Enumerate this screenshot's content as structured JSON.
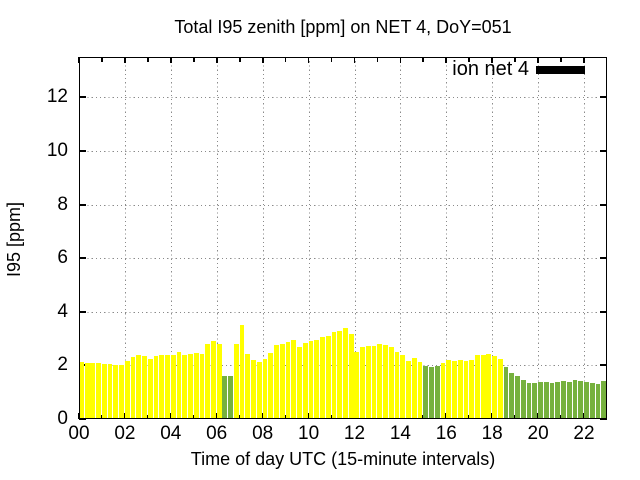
{
  "chart_data": {
    "type": "bar",
    "title": "Total I95 zenith [ppm] on NET 4, DoY=051",
    "xlabel": "Time of day UTC (15-minute intervals)",
    "ylabel": "I95 [ppm]",
    "legend": [
      {
        "label": "ion net 4",
        "swatch_color": "#000000"
      }
    ],
    "legend_position": "top-right-inside",
    "grid": true,
    "xlim_hours": [
      0,
      23
    ],
    "ylim": [
      0,
      13.5
    ],
    "x_tick_hours": [
      0,
      2,
      4,
      6,
      8,
      10,
      12,
      14,
      16,
      18,
      20,
      22
    ],
    "x_tick_labels": [
      "00",
      "02",
      "04",
      "06",
      "08",
      "10",
      "12",
      "14",
      "16",
      "18",
      "20",
      "22"
    ],
    "x_minor_tick_hours": [
      1,
      3,
      5,
      7,
      9,
      11,
      13,
      15,
      17,
      19,
      21
    ],
    "y_major_ticks": [
      0,
      2,
      4,
      6,
      8,
      10,
      12
    ],
    "bar_interval_minutes": 15,
    "colors": {
      "yellow": "#ffff00",
      "green": "#76b13e"
    },
    "bars": [
      {
        "t": "00:00",
        "v": 2.13,
        "c": "yellow"
      },
      {
        "t": "00:15",
        "v": 2.1,
        "c": "yellow"
      },
      {
        "t": "00:30",
        "v": 2.07,
        "c": "yellow"
      },
      {
        "t": "00:45",
        "v": 2.08,
        "c": "yellow"
      },
      {
        "t": "01:00",
        "v": 2.04,
        "c": "yellow"
      },
      {
        "t": "01:15",
        "v": 2.04,
        "c": "yellow"
      },
      {
        "t": "01:30",
        "v": 2.0,
        "c": "yellow"
      },
      {
        "t": "01:45",
        "v": 2.0,
        "c": "yellow"
      },
      {
        "t": "02:00",
        "v": 2.16,
        "c": "yellow"
      },
      {
        "t": "02:15",
        "v": 2.31,
        "c": "yellow"
      },
      {
        "t": "02:30",
        "v": 2.38,
        "c": "yellow"
      },
      {
        "t": "02:45",
        "v": 2.35,
        "c": "yellow"
      },
      {
        "t": "03:00",
        "v": 2.22,
        "c": "yellow"
      },
      {
        "t": "03:15",
        "v": 2.35,
        "c": "yellow"
      },
      {
        "t": "03:30",
        "v": 2.37,
        "c": "yellow"
      },
      {
        "t": "03:45",
        "v": 2.37,
        "c": "yellow"
      },
      {
        "t": "04:00",
        "v": 2.37,
        "c": "yellow"
      },
      {
        "t": "04:15",
        "v": 2.51,
        "c": "yellow"
      },
      {
        "t": "04:30",
        "v": 2.38,
        "c": "yellow"
      },
      {
        "t": "04:45",
        "v": 2.41,
        "c": "yellow"
      },
      {
        "t": "05:00",
        "v": 2.47,
        "c": "yellow"
      },
      {
        "t": "05:15",
        "v": 2.43,
        "c": "yellow"
      },
      {
        "t": "05:30",
        "v": 2.8,
        "c": "yellow"
      },
      {
        "t": "05:45",
        "v": 2.9,
        "c": "yellow"
      },
      {
        "t": "06:00",
        "v": 2.8,
        "c": "yellow"
      },
      {
        "t": "06:15",
        "v": 1.6,
        "c": "green"
      },
      {
        "t": "06:30",
        "v": 1.6,
        "c": "green"
      },
      {
        "t": "06:45",
        "v": 2.78,
        "c": "yellow"
      },
      {
        "t": "07:00",
        "v": 3.5,
        "c": "yellow"
      },
      {
        "t": "07:15",
        "v": 2.41,
        "c": "yellow"
      },
      {
        "t": "07:30",
        "v": 2.19,
        "c": "yellow"
      },
      {
        "t": "07:45",
        "v": 2.14,
        "c": "yellow"
      },
      {
        "t": "08:00",
        "v": 2.23,
        "c": "yellow"
      },
      {
        "t": "08:15",
        "v": 2.47,
        "c": "yellow"
      },
      {
        "t": "08:30",
        "v": 2.75,
        "c": "yellow"
      },
      {
        "t": "08:45",
        "v": 2.78,
        "c": "yellow"
      },
      {
        "t": "09:00",
        "v": 2.88,
        "c": "yellow"
      },
      {
        "t": "09:15",
        "v": 2.93,
        "c": "yellow"
      },
      {
        "t": "09:30",
        "v": 2.68,
        "c": "yellow"
      },
      {
        "t": "09:45",
        "v": 2.84,
        "c": "yellow"
      },
      {
        "t": "10:00",
        "v": 2.9,
        "c": "yellow"
      },
      {
        "t": "10:15",
        "v": 2.96,
        "c": "yellow"
      },
      {
        "t": "10:30",
        "v": 3.05,
        "c": "yellow"
      },
      {
        "t": "10:45",
        "v": 3.11,
        "c": "yellow"
      },
      {
        "t": "11:00",
        "v": 3.23,
        "c": "yellow"
      },
      {
        "t": "11:15",
        "v": 3.29,
        "c": "yellow"
      },
      {
        "t": "11:30",
        "v": 3.39,
        "c": "yellow"
      },
      {
        "t": "11:45",
        "v": 3.17,
        "c": "yellow"
      },
      {
        "t": "12:00",
        "v": 2.51,
        "c": "yellow"
      },
      {
        "t": "12:15",
        "v": 2.69,
        "c": "yellow"
      },
      {
        "t": "12:30",
        "v": 2.72,
        "c": "yellow"
      },
      {
        "t": "12:45",
        "v": 2.72,
        "c": "yellow"
      },
      {
        "t": "13:00",
        "v": 2.81,
        "c": "yellow"
      },
      {
        "t": "13:15",
        "v": 2.75,
        "c": "yellow"
      },
      {
        "t": "13:30",
        "v": 2.67,
        "c": "yellow"
      },
      {
        "t": "13:45",
        "v": 2.49,
        "c": "yellow"
      },
      {
        "t": "14:00",
        "v": 2.38,
        "c": "yellow"
      },
      {
        "t": "14:15",
        "v": 2.16,
        "c": "yellow"
      },
      {
        "t": "14:30",
        "v": 2.27,
        "c": "yellow"
      },
      {
        "t": "14:45",
        "v": 2.12,
        "c": "yellow"
      },
      {
        "t": "15:00",
        "v": 1.97,
        "c": "green"
      },
      {
        "t": "15:15",
        "v": 1.94,
        "c": "green"
      },
      {
        "t": "15:30",
        "v": 1.97,
        "c": "green"
      },
      {
        "t": "15:45",
        "v": 2.07,
        "c": "yellow"
      },
      {
        "t": "16:00",
        "v": 2.21,
        "c": "yellow"
      },
      {
        "t": "16:15",
        "v": 2.16,
        "c": "yellow"
      },
      {
        "t": "16:30",
        "v": 2.21,
        "c": "yellow"
      },
      {
        "t": "16:45",
        "v": 2.16,
        "c": "yellow"
      },
      {
        "t": "17:00",
        "v": 2.21,
        "c": "yellow"
      },
      {
        "t": "17:15",
        "v": 2.37,
        "c": "yellow"
      },
      {
        "t": "17:30",
        "v": 2.4,
        "c": "yellow"
      },
      {
        "t": "17:45",
        "v": 2.43,
        "c": "yellow"
      },
      {
        "t": "18:00",
        "v": 2.34,
        "c": "yellow"
      },
      {
        "t": "18:15",
        "v": 2.25,
        "c": "yellow"
      },
      {
        "t": "18:30",
        "v": 1.94,
        "c": "green"
      },
      {
        "t": "18:45",
        "v": 1.72,
        "c": "green"
      },
      {
        "t": "19:00",
        "v": 1.6,
        "c": "green"
      },
      {
        "t": "19:15",
        "v": 1.45,
        "c": "green"
      },
      {
        "t": "19:30",
        "v": 1.36,
        "c": "green"
      },
      {
        "t": "19:45",
        "v": 1.34,
        "c": "green"
      },
      {
        "t": "20:00",
        "v": 1.39,
        "c": "green"
      },
      {
        "t": "20:15",
        "v": 1.39,
        "c": "green"
      },
      {
        "t": "20:30",
        "v": 1.36,
        "c": "green"
      },
      {
        "t": "20:45",
        "v": 1.39,
        "c": "green"
      },
      {
        "t": "21:00",
        "v": 1.41,
        "c": "green"
      },
      {
        "t": "21:15",
        "v": 1.39,
        "c": "green"
      },
      {
        "t": "21:30",
        "v": 1.47,
        "c": "green"
      },
      {
        "t": "21:45",
        "v": 1.42,
        "c": "green"
      },
      {
        "t": "22:00",
        "v": 1.39,
        "c": "green"
      },
      {
        "t": "22:15",
        "v": 1.36,
        "c": "green"
      },
      {
        "t": "22:30",
        "v": 1.3,
        "c": "green"
      },
      {
        "t": "22:45",
        "v": 1.4,
        "c": "green"
      }
    ]
  }
}
